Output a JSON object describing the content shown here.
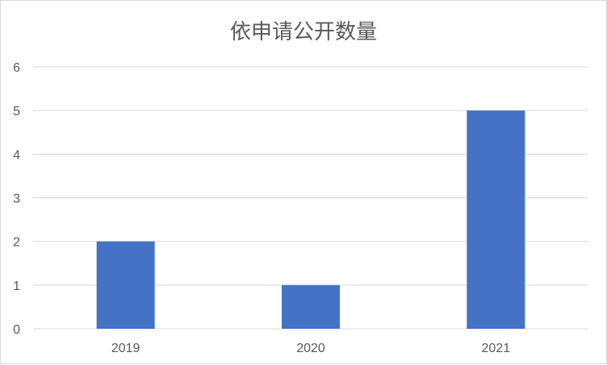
{
  "chart_data": {
    "type": "bar",
    "title": "依申请公开数量",
    "categories": [
      "2019",
      "2020",
      "2021"
    ],
    "values": [
      2,
      1,
      5
    ],
    "xlabel": "",
    "ylabel": "",
    "ylim": [
      0,
      6
    ],
    "yticks": [
      "0",
      "1",
      "2",
      "3",
      "4",
      "5",
      "6"
    ],
    "grid": true,
    "legend": "none",
    "colors": {
      "bar": "#4472C4",
      "grid": "#d9d9d9",
      "text": "#595959"
    }
  }
}
